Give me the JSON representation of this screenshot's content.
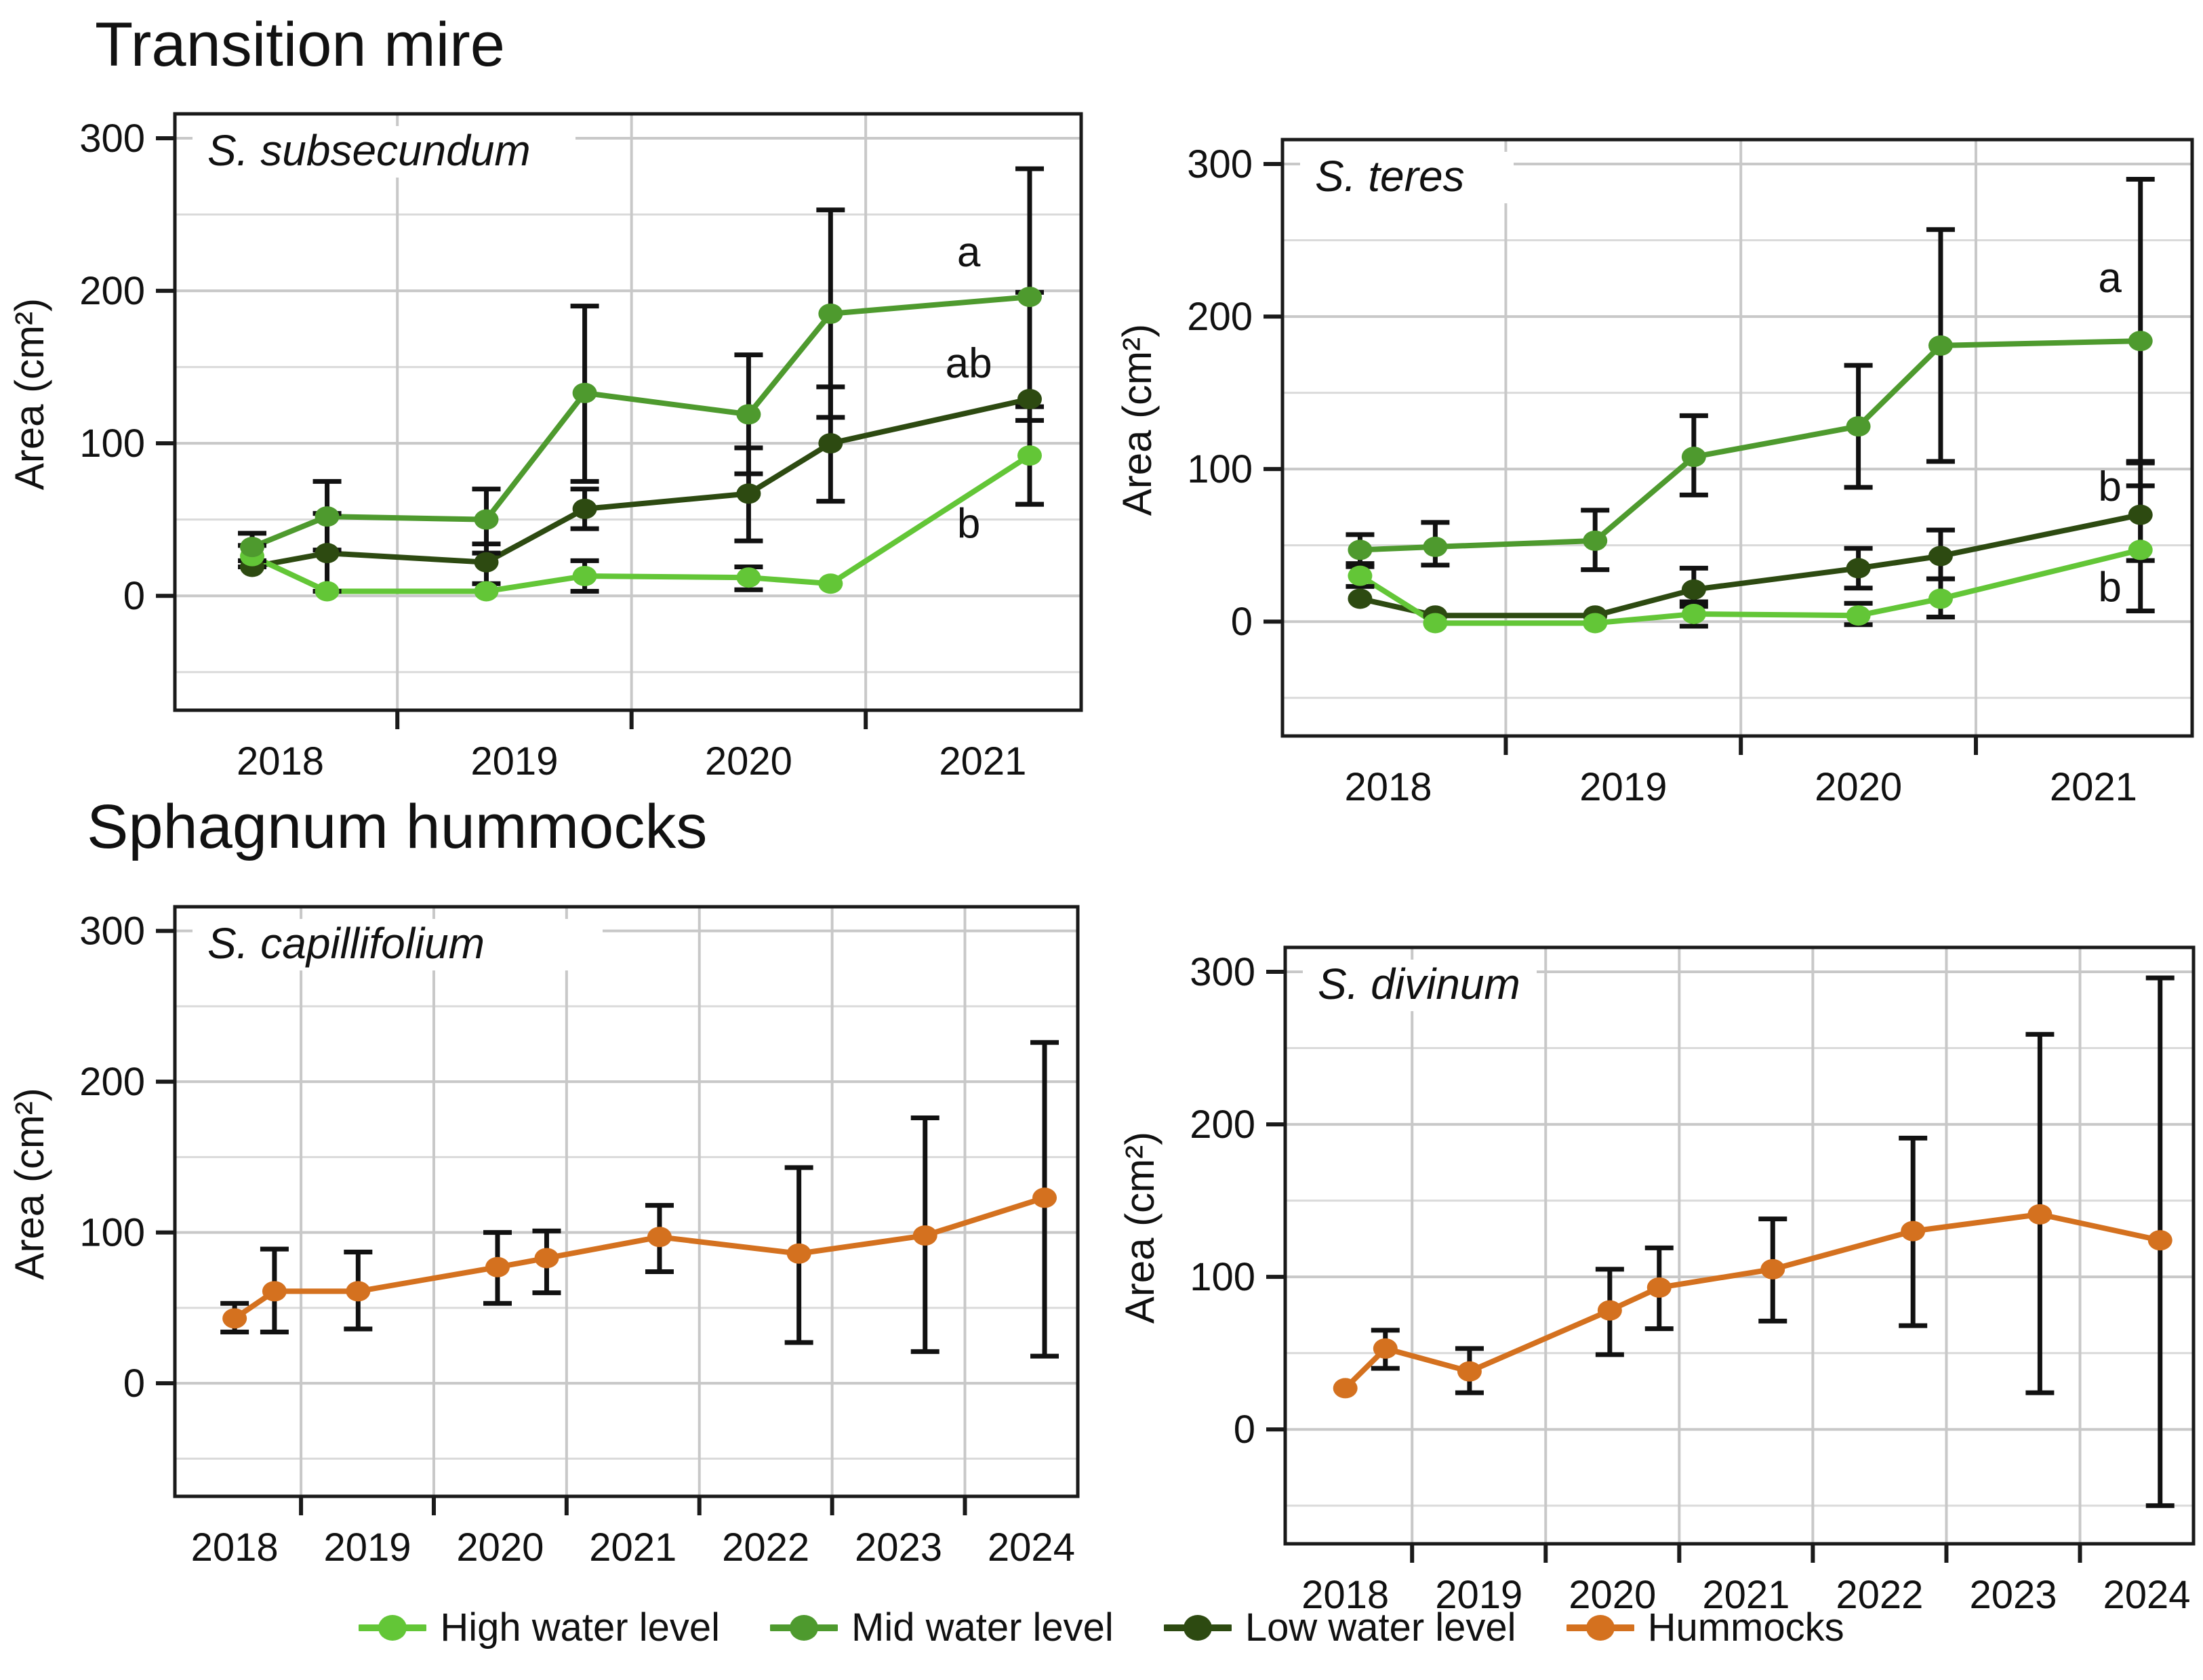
{
  "sections": {
    "transition_mire": {
      "title": "Transition mire"
    },
    "sphagnum_hummocks": {
      "title": "Sphagnum hummocks"
    }
  },
  "palette": {
    "high_water": "#63c637",
    "mid_water": "#4e9a2e",
    "low_water": "#2d4a11",
    "hummocks": "#d4711f",
    "grid_major": "#c8c8c8",
    "grid_minor": "#dadada",
    "axis": "#1a1a1a",
    "error_bar": "#111111"
  },
  "legend": {
    "items": [
      {
        "label": "High water level",
        "color": "#63c637"
      },
      {
        "label": "Mid water level",
        "color": "#4e9a2e"
      },
      {
        "label": "Low water level",
        "color": "#2d4a11"
      },
      {
        "label": "Hummocks",
        "color": "#d4711f"
      }
    ]
  },
  "chart_data": [
    {
      "id": "s_subsecundum",
      "type": "line",
      "section": "Transition mire",
      "title": "S. subsecundum",
      "ylabel": "Area (cm²)",
      "ylim": [
        -75,
        316
      ],
      "y_ticks": [
        0,
        100,
        200,
        300
      ],
      "grid_step": 50,
      "x_domain": [
        2017.55,
        2021.42
      ],
      "x_tick_positions": [
        2018.5,
        2019.5,
        2020.5
      ],
      "x_labels": [
        "2018",
        "2019",
        "2020",
        "2021"
      ],
      "x_label_positions": [
        2018,
        2019,
        2020,
        2021
      ],
      "series": [
        {
          "name": "Low water level",
          "color": "#2d4a11",
          "x": [
            2017.88,
            2018.2,
            2018.88,
            2019.3,
            2020.0,
            2020.35,
            2021.2
          ],
          "y": [
            19,
            28,
            22,
            57,
            67,
            100,
            129
          ],
          "err": [
            null,
            [
              3,
              54
            ],
            [
              8,
              34
            ],
            [
              44,
              70
            ],
            [
              36,
              97
            ],
            [
              62,
              137
            ],
            [
              60,
              199
            ]
          ]
        },
        {
          "name": "High water level",
          "color": "#63c637",
          "x": [
            2017.88,
            2018.2,
            2018.88,
            2019.3,
            2020.0,
            2020.35,
            2021.2
          ],
          "y": [
            26,
            3,
            3,
            13,
            12,
            8,
            92
          ],
          "err": [
            [
              19,
              33
            ],
            null,
            null,
            [
              3,
              23
            ],
            [
              4,
              19
            ],
            null,
            [
              60,
              124
            ]
          ]
        },
        {
          "name": "Mid water level",
          "color": "#4e9a2e",
          "x": [
            2017.88,
            2018.2,
            2018.88,
            2019.3,
            2020.0,
            2020.35,
            2021.2
          ],
          "y": [
            32,
            52,
            50,
            133,
            119,
            185,
            196
          ],
          "err": [
            [
              23,
              41
            ],
            [
              30,
              75
            ],
            [
              28,
              70
            ],
            [
              75,
              190
            ],
            [
              80,
              158
            ],
            [
              117,
              253
            ],
            [
              115,
              280
            ]
          ]
        }
      ],
      "annotations": [
        {
          "text": "a",
          "x": 2020.94,
          "y": 225
        },
        {
          "text": "ab",
          "x": 2020.94,
          "y": 152
        },
        {
          "text": "b",
          "x": 2020.94,
          "y": 47
        }
      ]
    },
    {
      "id": "s_teres",
      "type": "line",
      "section": "Transition mire",
      "title": "S. teres",
      "ylabel": "Area (cm²)",
      "ylim": [
        -75,
        316
      ],
      "y_ticks": [
        0,
        100,
        200,
        300
      ],
      "grid_step": 50,
      "x_domain": [
        2017.55,
        2021.42
      ],
      "x_tick_positions": [
        2018.5,
        2019.5,
        2020.5
      ],
      "x_labels": [
        "2018",
        "2019",
        "2020",
        "2021"
      ],
      "x_label_positions": [
        2018,
        2019,
        2020,
        2021
      ],
      "series": [
        {
          "name": "Low water level",
          "color": "#2d4a11",
          "x": [
            2017.88,
            2018.2,
            2018.88,
            2019.3,
            2020.0,
            2020.35,
            2021.2
          ],
          "y": [
            15,
            4,
            4,
            21,
            35,
            43,
            70
          ],
          "err": [
            null,
            null,
            null,
            [
              10,
              35
            ],
            [
              22,
              48
            ],
            [
              28,
              60
            ],
            [
              40,
              104
            ]
          ]
        },
        {
          "name": "High water level",
          "color": "#63c637",
          "x": [
            2017.88,
            2018.2,
            2018.88,
            2019.3,
            2020.0,
            2020.35,
            2021.2
          ],
          "y": [
            30,
            -1,
            -1,
            5,
            4,
            15,
            47
          ],
          "err": [
            [
              23,
              38
            ],
            null,
            null,
            [
              -3,
              13
            ],
            [
              -2,
              12
            ],
            [
              3,
              28
            ],
            [
              7,
              89
            ]
          ]
        },
        {
          "name": "Mid water level",
          "color": "#4e9a2e",
          "x": [
            2017.88,
            2018.2,
            2018.88,
            2019.3,
            2020.0,
            2020.35,
            2021.2
          ],
          "y": [
            47,
            49,
            53,
            108,
            128,
            181,
            184
          ],
          "err": [
            [
              36,
              57
            ],
            [
              37,
              65
            ],
            [
              34,
              73
            ],
            [
              83,
              135
            ],
            [
              88,
              168
            ],
            [
              105,
              257
            ],
            [
              105,
              290
            ]
          ]
        }
      ],
      "annotations": [
        {
          "text": "a",
          "x": 2021.07,
          "y": 225
        },
        {
          "text": "b",
          "x": 2021.07,
          "y": 88
        },
        {
          "text": "b",
          "x": 2021.07,
          "y": 22
        }
      ]
    },
    {
      "id": "s_capillifolium",
      "type": "line",
      "section": "Sphagnum hummocks",
      "title": "S. capillifolium",
      "ylabel": "Area (cm²)",
      "ylim": [
        -75,
        316
      ],
      "y_ticks": [
        0,
        100,
        200,
        300
      ],
      "grid_step": 50,
      "x_domain": [
        2017.55,
        2024.35
      ],
      "x_tick_positions": [
        2018.5,
        2019.5,
        2020.5,
        2021.5,
        2022.5,
        2023.5
      ],
      "x_labels": [
        "2018",
        "2019",
        "2020",
        "2021",
        "2022",
        "2023",
        "2024"
      ],
      "x_label_positions": [
        2018,
        2019,
        2020,
        2021,
        2022,
        2023,
        2024
      ],
      "series": [
        {
          "name": "Hummocks",
          "color": "#d4711f",
          "x": [
            2018.0,
            2018.3,
            2018.93,
            2019.98,
            2020.35,
            2021.2,
            2022.25,
            2023.2,
            2024.1
          ],
          "y": [
            43,
            61,
            61,
            77,
            83,
            97,
            86,
            98,
            123
          ],
          "err": [
            [
              34,
              53
            ],
            [
              34,
              89
            ],
            [
              36,
              87
            ],
            [
              53,
              100
            ],
            [
              60,
              101
            ],
            [
              74,
              118
            ],
            [
              27,
              143
            ],
            [
              21,
              176
            ],
            [
              18,
              226
            ]
          ]
        }
      ],
      "annotations": []
    },
    {
      "id": "s_divinum",
      "type": "line",
      "section": "Sphagnum hummocks",
      "title": "S. divinum",
      "ylabel": "Area (cm²)",
      "ylim": [
        -75,
        316
      ],
      "y_ticks": [
        0,
        100,
        200,
        300
      ],
      "grid_step": 50,
      "x_domain": [
        2017.55,
        2024.35
      ],
      "x_tick_positions": [
        2018.5,
        2019.5,
        2020.5,
        2021.5,
        2022.5,
        2023.5
      ],
      "x_labels": [
        "2018",
        "2019",
        "2020",
        "2021",
        "2022",
        "2023",
        "2024"
      ],
      "x_label_positions": [
        2018,
        2019,
        2020,
        2021,
        2022,
        2023,
        2024
      ],
      "series": [
        {
          "name": "Hummocks",
          "color": "#d4711f",
          "x": [
            2018.0,
            2018.3,
            2018.93,
            2019.98,
            2020.35,
            2021.2,
            2022.25,
            2023.2,
            2024.1
          ],
          "y": [
            27,
            53,
            38,
            78,
            93,
            105,
            130,
            141,
            124
          ],
          "err": [
            null,
            [
              40,
              65
            ],
            [
              24,
              53
            ],
            [
              49,
              105
            ],
            [
              66,
              119
            ],
            [
              71,
              138
            ],
            [
              68,
              191
            ],
            [
              24,
              259
            ],
            [
              -50,
              296
            ]
          ]
        }
      ],
      "annotations": []
    }
  ]
}
